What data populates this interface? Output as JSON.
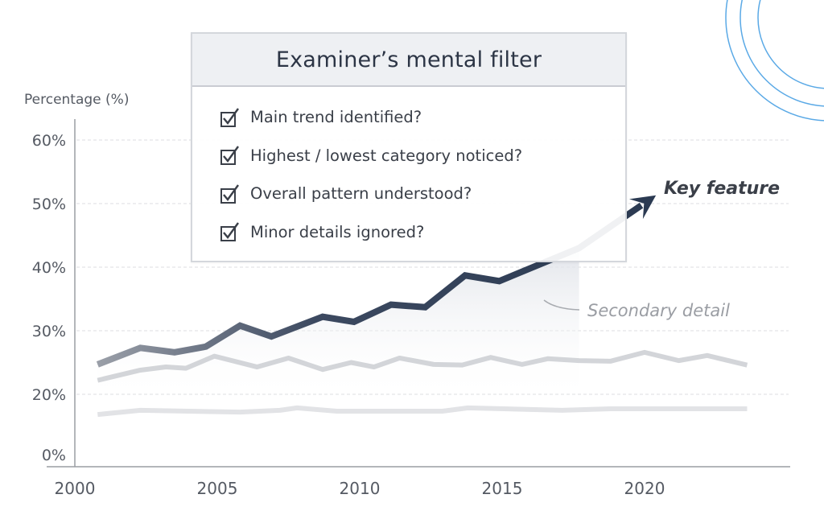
{
  "chart_data": {
    "type": "line",
    "ylabel": "Percentage (%)",
    "y_ticks": [
      {
        "value": 60,
        "label": "60%"
      },
      {
        "value": 50,
        "label": "50%"
      },
      {
        "value": 40,
        "label": "40%"
      },
      {
        "value": 30,
        "label": "30%"
      },
      {
        "value": 20,
        "label": "20%"
      },
      {
        "value": 0,
        "label": "0%"
      }
    ],
    "x_ticks": [
      "2000",
      "2005",
      "2010",
      "2015",
      "2020"
    ],
    "xlim": [
      2000,
      2025
    ],
    "ylim": [
      0,
      60
    ],
    "grid": "horizontal dashed",
    "series": [
      {
        "role": "main",
        "color": "#2b3a52",
        "x": [
          2000.8,
          2002.3,
          2003.5,
          2004.6,
          2005.8,
          2006.9,
          2008.7,
          2009.8,
          2011.1,
          2012.3,
          2013.7,
          2014.9,
          2017.7,
          2020.4
        ],
        "y": [
          24.7,
          27.3,
          26.6,
          27.5,
          30.8,
          29.1,
          32.2,
          31.4,
          34.1,
          33.7,
          38.7,
          37.8,
          43.0,
          51.3
        ]
      },
      {
        "role": "secondary",
        "color": "#d3d5d9",
        "x": [
          2000.8,
          2002.3,
          2003.2,
          2003.9,
          2004.9,
          2006.4,
          2007.5,
          2008.7,
          2009.7,
          2010.5,
          2011.4,
          2012.6,
          2013.6,
          2014.6,
          2015.7,
          2016.6,
          2017.7,
          2018.8,
          2020.0,
          2021.2,
          2022.2,
          2023.6
        ],
        "y": [
          22.2,
          23.8,
          24.3,
          24.1,
          26.0,
          24.3,
          25.7,
          23.9,
          25.0,
          24.3,
          25.7,
          24.7,
          24.6,
          25.8,
          24.7,
          25.6,
          25.3,
          25.2,
          26.6,
          25.3,
          26.1,
          24.6
        ]
      },
      {
        "role": "minor",
        "color": "#e2e3e6",
        "x": [
          2000.8,
          2002.3,
          2005.8,
          2007.2,
          2007.8,
          2009.2,
          2012.9,
          2013.8,
          2017.1,
          2018.8,
          2023.6
        ],
        "y": [
          13.3,
          14.7,
          14.1,
          14.7,
          15.5,
          14.4,
          14.4,
          15.5,
          14.7,
          15.2,
          15.2
        ]
      }
    ],
    "annotations": {
      "key_feature": "Key feature",
      "secondary_detail": "Secondary detail"
    }
  },
  "checklist": {
    "title": "Examiner’s mental filter",
    "items": [
      "Main trend identified?",
      "Highest / lowest category noticed?",
      "Overall pattern understood?",
      "Minor details ignored?"
    ]
  },
  "colors": {
    "accent_main": "#2b3a52",
    "decor_circles": "#5aa9e6"
  }
}
